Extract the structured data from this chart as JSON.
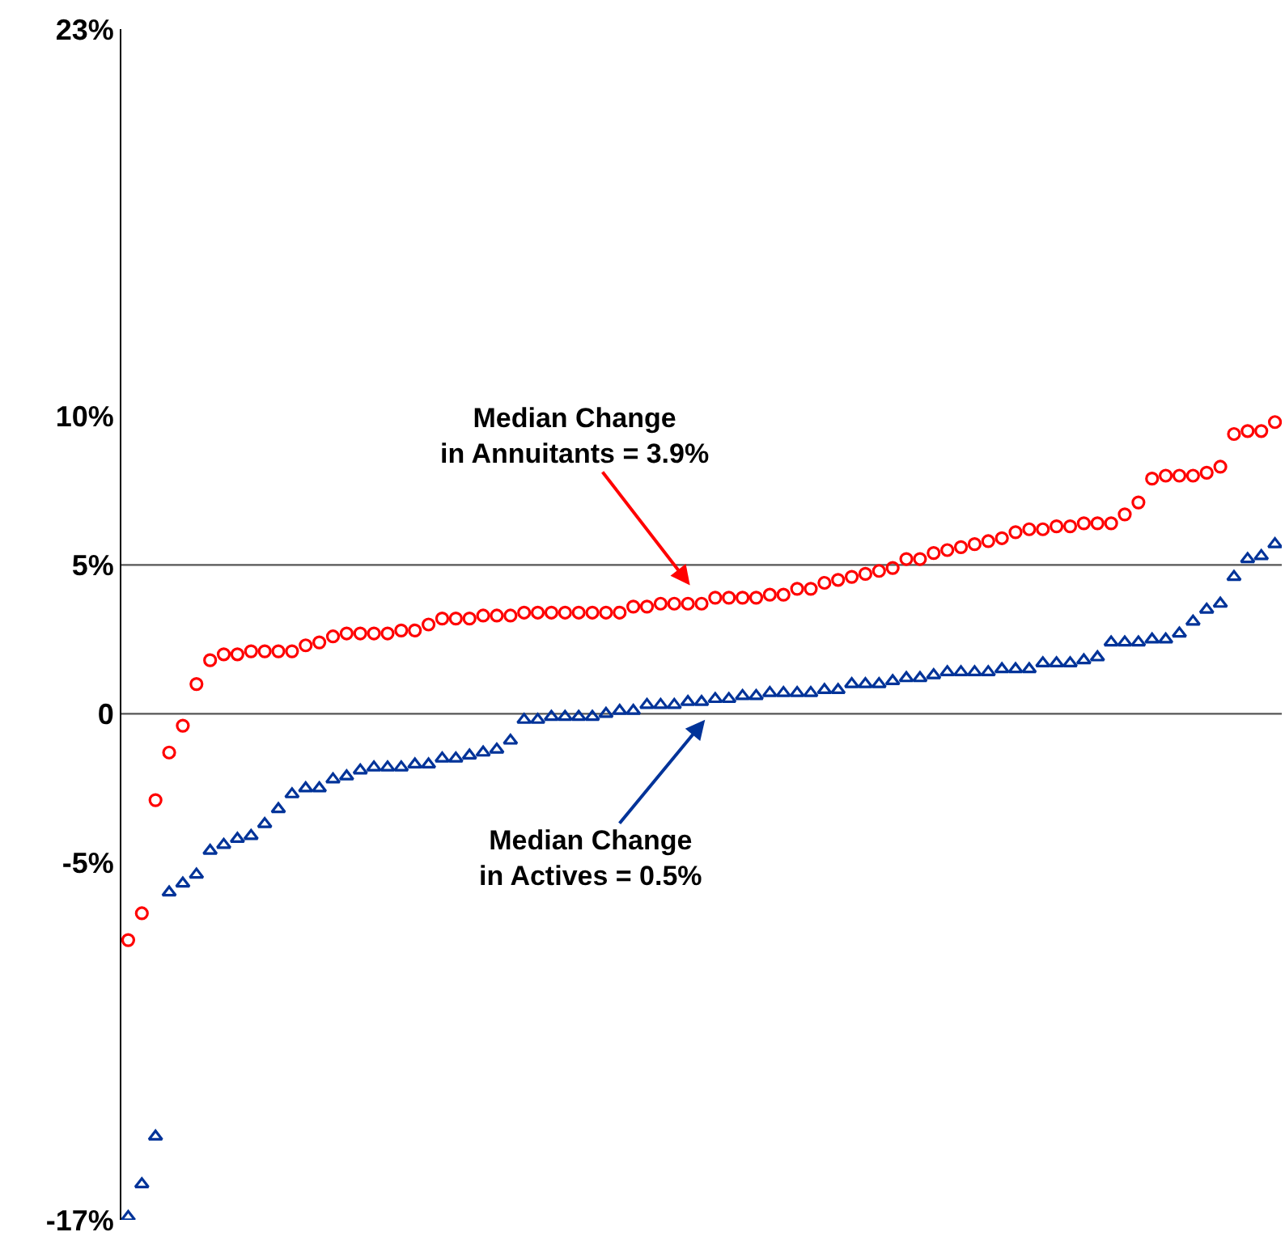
{
  "chart_data": {
    "type": "scatter",
    "categories": [
      null,
      null,
      null,
      null,
      null,
      null,
      null,
      null,
      null,
      null,
      null,
      null,
      null,
      null,
      null,
      null,
      null,
      null,
      null,
      null,
      null,
      null,
      null,
      null,
      null,
      null,
      null,
      null,
      null,
      null,
      null,
      null,
      null,
      null,
      null,
      null,
      null,
      null,
      null,
      null,
      null,
      null,
      null,
      null,
      null,
      null,
      null,
      null,
      null,
      null,
      null,
      null,
      null,
      null,
      null,
      null,
      null,
      null,
      null,
      null,
      null,
      null,
      null,
      null,
      null,
      null,
      null,
      null,
      null,
      null,
      null,
      null,
      null,
      null,
      null,
      null,
      null,
      null,
      null,
      null,
      null,
      null,
      null,
      null,
      null
    ],
    "series": [
      {
        "color": "#ff0000",
        "marker": "circle",
        "values": [
          -7.6,
          -6.7,
          -2.9,
          -1.3,
          -0.4,
          1.0,
          1.8,
          2.0,
          2.0,
          2.1,
          2.1,
          2.1,
          2.1,
          2.3,
          2.4,
          2.6,
          2.7,
          2.7,
          2.7,
          2.7,
          2.8,
          2.8,
          3.0,
          3.2,
          3.2,
          3.2,
          3.3,
          3.3,
          3.3,
          3.4,
          3.4,
          3.4,
          3.4,
          3.4,
          3.4,
          3.4,
          3.4,
          3.6,
          3.6,
          3.7,
          3.7,
          3.7,
          3.7,
          3.9,
          3.9,
          3.9,
          3.9,
          4.0,
          4.0,
          4.2,
          4.2,
          4.4,
          4.5,
          4.6,
          4.7,
          4.8,
          4.9,
          5.2,
          5.2,
          5.4,
          5.5,
          5.6,
          5.7,
          5.8,
          5.9,
          6.1,
          6.2,
          6.2,
          6.3,
          6.3,
          6.4,
          6.4,
          6.4,
          6.7,
          7.1,
          7.9,
          8.0,
          8.0,
          8.0,
          8.1,
          8.3,
          9.4,
          9.5,
          9.5,
          9.8
        ]
      },
      {
        "color": "#003399",
        "marker": "triangle",
        "values": [
          -16.9,
          -15.8,
          -14.2,
          -6.0,
          -5.7,
          -5.4,
          -4.6,
          -4.4,
          -4.2,
          -4.1,
          -3.7,
          -3.2,
          -2.7,
          -2.5,
          -2.5,
          -2.2,
          -2.1,
          -1.9,
          -1.8,
          -1.8,
          -1.8,
          -1.7,
          -1.7,
          -1.5,
          -1.5,
          -1.4,
          -1.3,
          -1.2,
          -0.9,
          -0.2,
          -0.2,
          -0.1,
          -0.1,
          -0.1,
          -0.1,
          0.0,
          0.1,
          0.1,
          0.3,
          0.3,
          0.3,
          0.4,
          0.4,
          0.5,
          0.5,
          0.6,
          0.6,
          0.7,
          0.7,
          0.7,
          0.7,
          0.8,
          0.8,
          1.0,
          1.0,
          1.0,
          1.1,
          1.2,
          1.2,
          1.3,
          1.4,
          1.4,
          1.4,
          1.4,
          1.5,
          1.5,
          1.5,
          1.7,
          1.7,
          1.7,
          1.8,
          1.9,
          2.4,
          2.4,
          2.4,
          2.5,
          2.5,
          2.7,
          3.1,
          3.5,
          3.7,
          4.6,
          5.2,
          5.3,
          5.7
        ]
      }
    ],
    "ylim": [
      -17,
      23
    ],
    "yticks": [
      {
        "value": -17,
        "label": "-17%"
      },
      {
        "value": -5,
        "label": "-5%"
      },
      0,
      {
        "value": 5,
        "label": "5%"
      },
      {
        "value": 10,
        "label": "10%"
      },
      {
        "value": 23,
        "label": "23%"
      }
    ],
    "ref_lines": [
      {
        "axis": "y",
        "value": 0,
        "color": "#555555"
      },
      {
        "axis": "y",
        "value": 5,
        "color": "#555555"
      }
    ],
    "annotations": [
      "Median Change\nin Annuitants = 3.9%",
      "Median Change\nin Actives = 0.5%"
    ],
    "tick_labels": "y"
  }
}
